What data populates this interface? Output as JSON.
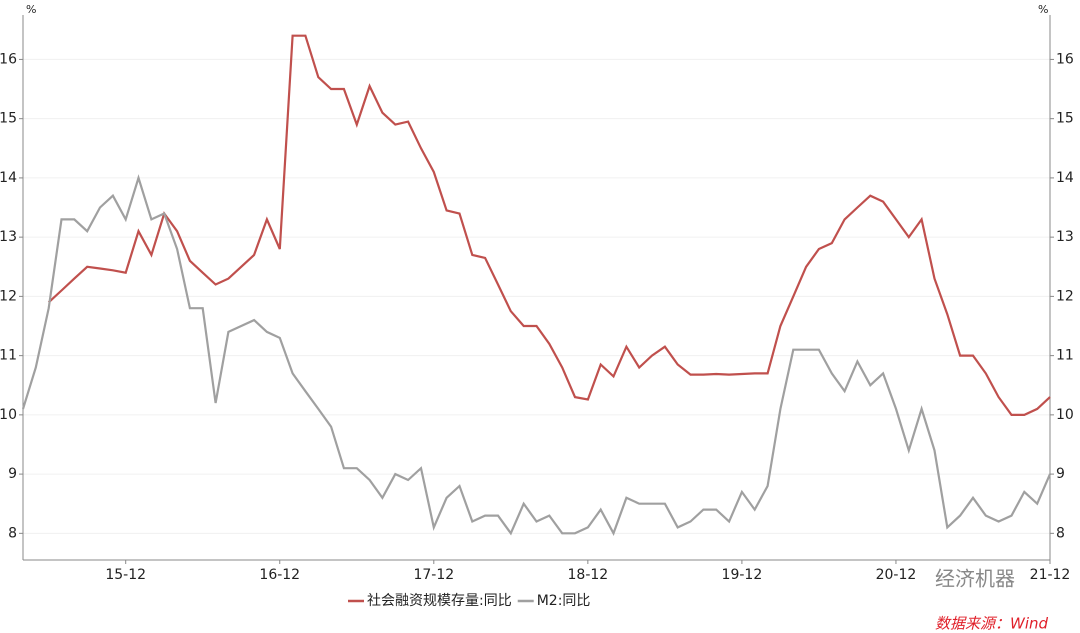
{
  "chart_data": {
    "type": "line",
    "y_unit": "%",
    "y2_unit": "%",
    "categories": [
      null,
      null,
      null,
      null,
      null,
      null,
      null,
      null,
      "15-12",
      null,
      null,
      null,
      null,
      null,
      null,
      null,
      null,
      null,
      null,
      null,
      "16-12",
      null,
      null,
      null,
      null,
      null,
      null,
      null,
      null,
      null,
      null,
      null,
      "17-12",
      null,
      null,
      null,
      null,
      null,
      null,
      null,
      null,
      null,
      null,
      null,
      "18-12",
      null,
      null,
      null,
      null,
      null,
      null,
      null,
      null,
      null,
      null,
      null,
      "19-12",
      null,
      null,
      null,
      null,
      null,
      null,
      null,
      null,
      null,
      null,
      null,
      "20-12",
      null,
      null,
      null,
      null,
      null,
      null,
      null,
      null,
      null,
      null,
      null,
      "21-12"
    ],
    "series": [
      {
        "name": "社会融资规模存量:同比",
        "color": "#c0504d",
        "values": [
          null,
          null,
          11.9,
          12.1,
          12.3,
          12.5,
          12.47,
          12.44,
          12.4,
          13.1,
          12.7,
          13.4,
          13.1,
          12.6,
          12.4,
          12.2,
          12.3,
          12.5,
          12.7,
          13.3,
          12.8,
          16.4,
          16.4,
          15.7,
          15.5,
          15.5,
          14.9,
          15.55,
          15.1,
          14.9,
          14.95,
          14.5,
          14.1,
          13.45,
          13.4,
          12.7,
          12.65,
          12.2,
          11.75,
          11.5,
          11.5,
          11.2,
          10.8,
          10.3,
          10.26,
          10.85,
          10.65,
          11.15,
          10.8,
          11.0,
          11.15,
          10.85,
          10.68,
          10.68,
          10.69,
          10.68,
          10.69,
          10.7,
          10.7,
          11.5,
          12.0,
          12.5,
          12.8,
          12.9,
          13.3,
          13.5,
          13.7,
          13.6,
          13.3,
          13.0,
          13.3,
          12.3,
          11.7,
          11.0,
          11.0,
          10.7,
          10.3,
          10.0,
          10.0,
          10.1,
          10.3
        ]
      },
      {
        "name": "M2:同比",
        "color": "#a0a0a0",
        "values": [
          10.1,
          10.8,
          11.8,
          13.3,
          13.3,
          13.1,
          13.5,
          13.7,
          13.3,
          14.0,
          13.3,
          13.4,
          12.8,
          11.8,
          11.8,
          10.2,
          11.4,
          11.5,
          11.6,
          11.4,
          11.3,
          10.7,
          10.4,
          10.1,
          9.8,
          9.1,
          9.1,
          8.9,
          8.6,
          9.0,
          8.9,
          9.1,
          8.1,
          8.6,
          8.8,
          8.2,
          8.3,
          8.3,
          8.0,
          8.5,
          8.2,
          8.3,
          8.0,
          8.0,
          8.1,
          8.4,
          8.0,
          8.6,
          8.5,
          8.5,
          8.5,
          8.1,
          8.2,
          8.4,
          8.4,
          8.2,
          8.7,
          8.4,
          8.8,
          10.1,
          11.1,
          11.1,
          11.1,
          10.7,
          10.4,
          10.9,
          10.5,
          10.7,
          10.1,
          9.4,
          10.1,
          9.4,
          8.1,
          8.3,
          8.6,
          8.3,
          8.2,
          8.3,
          8.7,
          8.5,
          9.0
        ]
      }
    ],
    "ylim": [
      7.55,
      16.75
    ],
    "yticks": [
      8,
      9,
      10,
      11,
      12,
      13,
      14,
      15,
      16
    ],
    "y2lim": [
      7.55,
      16.75
    ],
    "y2ticks": [
      8,
      9,
      10,
      11,
      12,
      13,
      14,
      15,
      16
    ],
    "grid": true,
    "watermark": "经济机器",
    "source": "数据来源：Wind"
  }
}
